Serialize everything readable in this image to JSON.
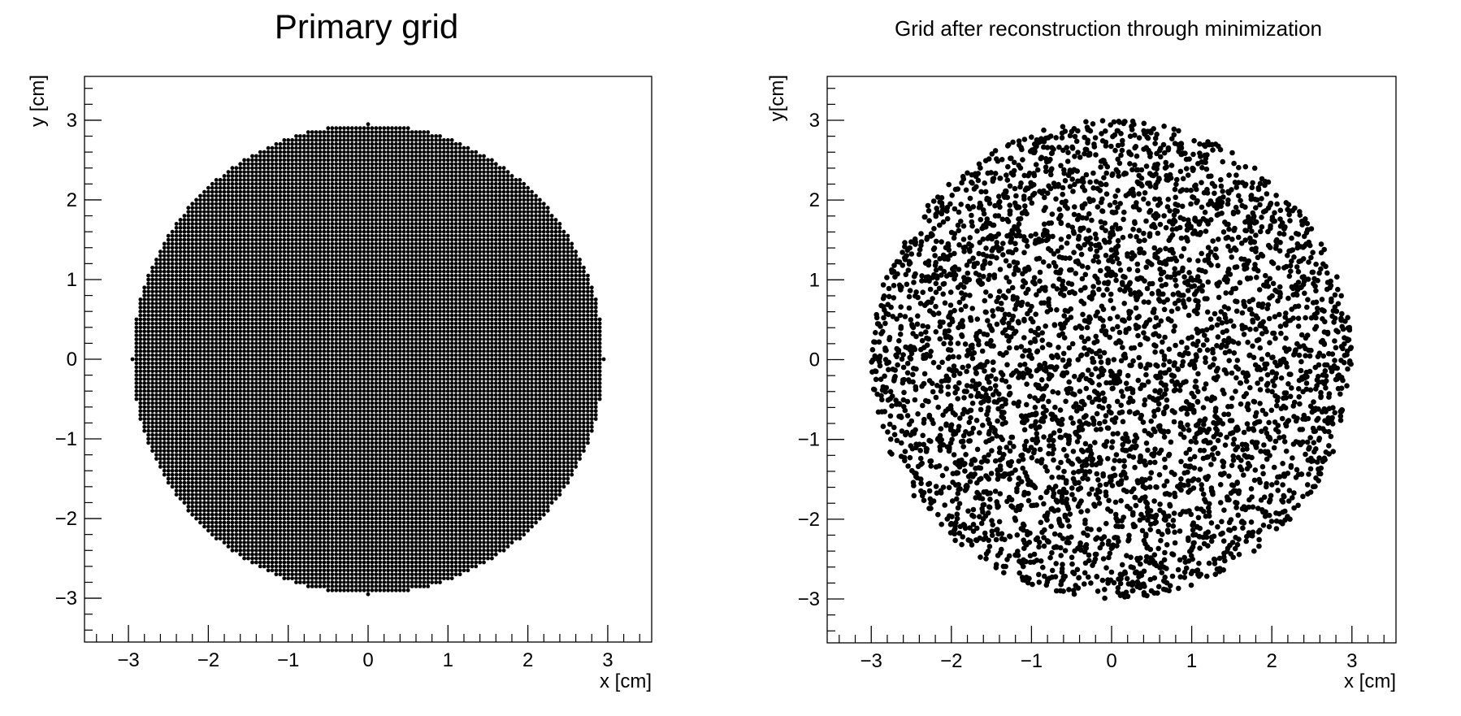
{
  "chart_data": [
    {
      "type": "scatter",
      "title": "Primary grid",
      "xlabel": "x [cm]",
      "ylabel": "y [cm]",
      "xlim": [
        -3.55,
        3.55
      ],
      "ylim": [
        -3.55,
        3.55
      ],
      "xticks": [
        -3,
        -2,
        -1,
        0,
        1,
        2,
        3
      ],
      "yticks": [
        -3,
        -2,
        -1,
        0,
        1,
        2,
        3
      ],
      "xtick_labels": [
        "−3",
        "−2",
        "−1",
        "0",
        "1",
        "2",
        "3"
      ],
      "ytick_labels": [
        "−3",
        "−2",
        "−1",
        "0",
        "1",
        "2",
        "3"
      ],
      "grid": false,
      "pattern": "regular grid of points filling a disk",
      "disk_radius": 2.95,
      "point_spacing": 0.05,
      "marker_color": "#000000"
    },
    {
      "type": "scatter",
      "title": "Grid after reconstruction through minimization",
      "xlabel": "x [cm]",
      "ylabel": "y[cm]",
      "xlim": [
        -3.55,
        3.55
      ],
      "ylim": [
        -3.55,
        3.55
      ],
      "xticks": [
        -3,
        -2,
        -1,
        0,
        1,
        2,
        3
      ],
      "yticks": [
        -3,
        -2,
        -1,
        0,
        1,
        2,
        3
      ],
      "xtick_labels": [
        "−3",
        "−2",
        "−1",
        "0",
        "1",
        "2",
        "3"
      ],
      "ytick_labels": [
        "−3",
        "−2",
        "−1",
        "0",
        "1",
        "2",
        "3"
      ],
      "grid": false,
      "pattern": "irregular scattered points within a disk",
      "disk_radius": 3.0,
      "approx_points": 4200,
      "marker_color": "#000000"
    }
  ]
}
